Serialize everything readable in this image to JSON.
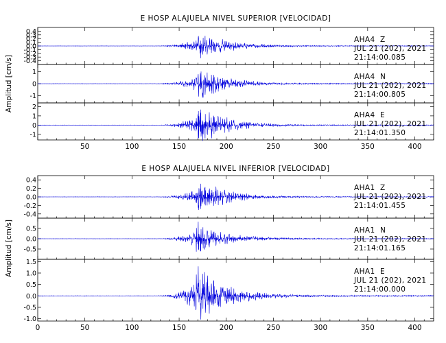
{
  "chart_data": [
    {
      "type": "line",
      "title": "E HOSP ALAJUELA NIVEL SUPERIOR [VELOCIDAD]",
      "ylabel": "Amplitud [cm/s]",
      "xlim": [
        0,
        420
      ],
      "x_ticks": [
        "50",
        "100",
        "150",
        "200",
        "250",
        "300",
        "350",
        "400"
      ],
      "show_x_tick_labels": true,
      "trace_color": "#0000dd",
      "panels": [
        {
          "station": "AHA4",
          "component": "Z",
          "date": "JUL 21 (202), 2021",
          "time": "21:14:00.085",
          "ylim": [
            -0.5,
            0.5
          ],
          "y_ticks": [
            "0.4",
            "0.3",
            "0.2",
            "0.1",
            "0.0",
            "-0.1",
            "-0.2",
            "-0.3",
            "-0.4"
          ],
          "peak": 0.45,
          "peak_time": 172,
          "onset": 125,
          "seed": 11
        },
        {
          "station": "AHA4",
          "component": "N",
          "date": "JUL 21 (202), 2021",
          "time": "21:14:00.805",
          "ylim": [
            -1.6,
            1.6
          ],
          "y_ticks": [
            "1",
            "0",
            "-1"
          ],
          "peak": 1.5,
          "peak_time": 173,
          "onset": 125,
          "seed": 23
        },
        {
          "station": "AHA4",
          "component": "E",
          "date": "JUL 21 (202), 2021",
          "time": "21:14:01.350",
          "ylim": [
            -1.6,
            2.4
          ],
          "y_ticks": [
            "2",
            "1",
            "0",
            "-1"
          ],
          "peak": 2.3,
          "peak_time": 172,
          "onset": 125,
          "seed": 37
        }
      ]
    },
    {
      "type": "line",
      "title": "E HOSP ALAJUELA NIVEL INFERIOR [VELOCIDAD]",
      "ylabel": "Amplitud [cm/s]",
      "xlim": [
        0,
        420
      ],
      "x_ticks": [
        "0",
        "50",
        "100",
        "150",
        "200",
        "250",
        "300",
        "350",
        "400"
      ],
      "show_x_tick_labels": true,
      "trace_color": "#0000dd",
      "panels": [
        {
          "station": "AHA1",
          "component": "Z",
          "date": "JUL 21 (202), 2021",
          "time": "21:14:01.455",
          "ylim": [
            -0.5,
            0.5
          ],
          "y_ticks": [
            "0.4",
            "0.2",
            "0.0",
            "-0.2",
            "-0.4"
          ],
          "peak": 0.45,
          "peak_time": 172,
          "onset": 125,
          "seed": 53
        },
        {
          "station": "AHA1",
          "component": "N",
          "date": "JUL 21 (202), 2021",
          "time": "21:14:01.165",
          "ylim": [
            -1.0,
            1.0
          ],
          "y_ticks": [
            "0.5",
            "0.0",
            "-0.5"
          ],
          "peak": 0.9,
          "peak_time": 171,
          "onset": 125,
          "seed": 71
        },
        {
          "station": "AHA1",
          "component": "E",
          "date": "JUL 21 (202), 2021",
          "time": "21:14:00.000",
          "ylim": [
            -1.1,
            1.6
          ],
          "y_ticks": [
            "1.5",
            "1.0",
            "0.5",
            "0.0",
            "-0.5",
            "-1.0"
          ],
          "peak": 1.5,
          "peak_time": 170,
          "onset": 125,
          "seed": 89
        }
      ]
    }
  ]
}
